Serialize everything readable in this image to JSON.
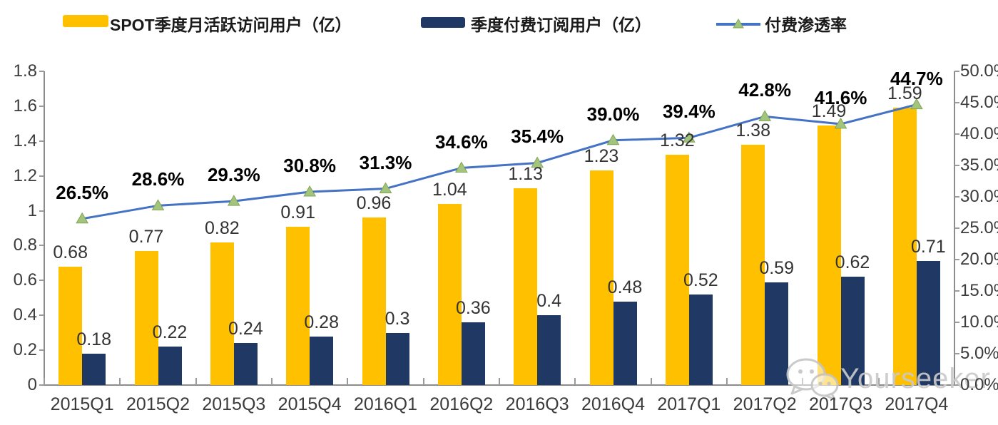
{
  "legend": {
    "items": [
      {
        "label": "SPOT季度月活跃访问用户（亿）",
        "swatch": "bar",
        "color": "#FFC000"
      },
      {
        "label": "季度付费订阅用户（亿）",
        "swatch": "bar",
        "color": "#1F3864"
      },
      {
        "label": "付费渗透率",
        "swatch": "line-triangle-marker",
        "color": "#4472C4",
        "marker_color": "#A3C47C"
      }
    ]
  },
  "watermark": {
    "text": "Yourseeker",
    "icon": "wechat-icon"
  },
  "colors": {
    "bar_mau": "#FFC000",
    "bar_subs": "#1F3864",
    "line": "#4472C4",
    "marker_fill": "#A3C47C",
    "marker_edge": "#7FA653",
    "axis": "#8c8c8c",
    "watermark": "#c9c9c9"
  },
  "chart_data": {
    "type": "bar",
    "subtype": "combo-bar-line",
    "title": "",
    "xlabel": "",
    "ylabel_left": "",
    "ylabel_right": "",
    "grid": false,
    "legend_position": "top",
    "categories": [
      "2015Q1",
      "2015Q2",
      "2015Q3",
      "2015Q4",
      "2016Q1",
      "2016Q2",
      "2016Q3",
      "2016Q4",
      "2017Q1",
      "2017Q2",
      "2017Q3",
      "2017Q4"
    ],
    "series": [
      {
        "name": "SPOT季度月活跃访问用户（亿）",
        "type": "bar",
        "axis": "left",
        "color": "#FFC000",
        "values": [
          0.68,
          0.77,
          0.82,
          0.91,
          0.96,
          1.04,
          1.13,
          1.23,
          1.32,
          1.38,
          1.49,
          1.59
        ],
        "labels": [
          "0.68",
          "0.77",
          "0.82",
          "0.91",
          "0.96",
          "1.04",
          "1.13",
          "1.23",
          "1.32",
          "1.38",
          "1.49",
          "1.59"
        ]
      },
      {
        "name": "季度付费订阅用户（亿）",
        "type": "bar",
        "axis": "left",
        "color": "#1F3864",
        "values": [
          0.18,
          0.22,
          0.24,
          0.28,
          0.3,
          0.36,
          0.4,
          0.48,
          0.52,
          0.59,
          0.62,
          0.71
        ],
        "labels": [
          "0.18",
          "0.22",
          "0.24",
          "0.28",
          "0.3",
          "0.36",
          "0.4",
          "0.48",
          "0.52",
          "0.59",
          "0.62",
          "0.71"
        ]
      },
      {
        "name": "付费渗透率",
        "type": "line",
        "axis": "right",
        "color": "#4472C4",
        "marker": "triangle-up",
        "marker_color": "#A3C47C",
        "values": [
          26.5,
          28.6,
          29.3,
          30.8,
          31.3,
          34.6,
          35.4,
          39.0,
          39.4,
          42.8,
          41.6,
          44.7
        ],
        "labels": [
          "26.5%",
          "28.6%",
          "29.3%",
          "30.8%",
          "31.3%",
          "34.6%",
          "35.4%",
          "39.0%",
          "39.4%",
          "42.8%",
          "41.6%",
          "44.7%"
        ]
      }
    ],
    "left_axis": {
      "min": 0,
      "max": 1.8,
      "ticks": [
        "0",
        "0.2",
        "0.4",
        "0.6",
        "0.8",
        "1",
        "1.2",
        "1.4",
        "1.6",
        "1.8"
      ]
    },
    "right_axis": {
      "min": 0,
      "max": 50,
      "ticks": [
        "0.0%",
        "5.0%",
        "10.0%",
        "15.0%",
        "20.0%",
        "25.0%",
        "30.0%",
        "35.0%",
        "40.0%",
        "45.0%",
        "50.0%"
      ]
    }
  }
}
